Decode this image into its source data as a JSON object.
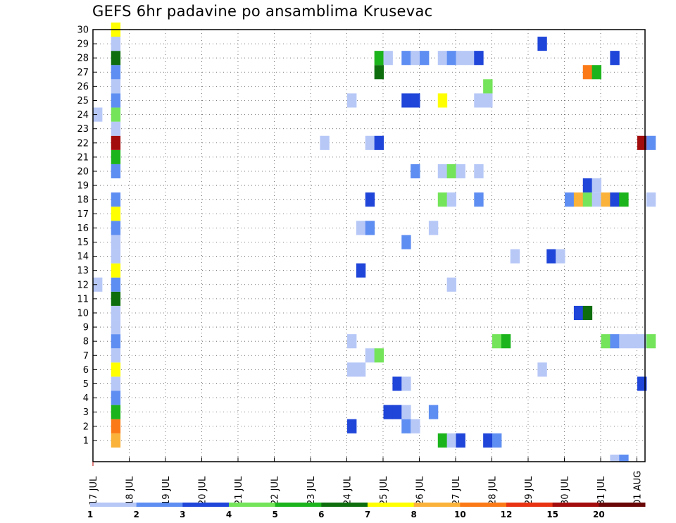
{
  "chart_data": {
    "type": "heatmap",
    "title": "GEFS 6hr padavine po ansamblima Krusevac",
    "xlabel": "",
    "ylabel": "",
    "x_tick_labels": [
      "17 JUL",
      "18 JUL",
      "19 JUL",
      "20 JUL",
      "21 JUL",
      "22 JUL",
      "23 JUL",
      "24 JUL",
      "25 JUL",
      "26 JUL",
      "27 JUL",
      "28 JUL",
      "29 JUL",
      "30 JUL",
      "31 JUL",
      "01 AUG"
    ],
    "x_range_days": [
      0,
      15.3
    ],
    "y_tick_labels": [
      "1",
      "2",
      "3",
      "4",
      "5",
      "6",
      "7",
      "8",
      "9",
      "10",
      "11",
      "12",
      "13",
      "14",
      "15",
      "16",
      "17",
      "18",
      "19",
      "20",
      "21",
      "22",
      "23",
      "24",
      "25",
      "26",
      "27",
      "28",
      "29",
      "30"
    ],
    "y_range": [
      0,
      30
    ],
    "grid": true,
    "grid_style": "dotted",
    "colorbar": {
      "position": "bottom",
      "labels": [
        "1",
        "2",
        "3",
        "4",
        "5",
        "6",
        "7",
        "8",
        "10",
        "12",
        "15",
        "20"
      ],
      "colors": [
        "#b7c8f7",
        "#5f8ef2",
        "#1f45d9",
        "#74e45a",
        "#1cb41c",
        "#0e6e0e",
        "#ffff00",
        "#fbb23a",
        "#fb7a17",
        "#e83211",
        "#a30c0c",
        "#6a0606"
      ]
    },
    "class_colors": {
      "1": "#b7c8f7",
      "2": "#5f8ef2",
      "3": "#1f45d9",
      "4": "#74e45a",
      "5": "#1cb41c",
      "6": "#0e6e0e",
      "7": "#ffff00",
      "8": "#fbb23a",
      "10": "#fb7a17",
      "12": "#e83211",
      "15": "#a30c0c",
      "20": "#6a0606"
    },
    "cells_day_member_class": [
      [
        0.63,
        1,
        "8"
      ],
      [
        0.63,
        2,
        "10"
      ],
      [
        0.63,
        3,
        "5"
      ],
      [
        0.63,
        4,
        "2"
      ],
      [
        0.63,
        5,
        "1"
      ],
      [
        0.63,
        6,
        "7"
      ],
      [
        0.63,
        7,
        "1"
      ],
      [
        0.63,
        8,
        "2"
      ],
      [
        0.63,
        9,
        "1"
      ],
      [
        0.63,
        10,
        "1"
      ],
      [
        0.63,
        11,
        "6"
      ],
      [
        0.63,
        12,
        "2"
      ],
      [
        0.63,
        13,
        "7"
      ],
      [
        0.63,
        14,
        "1"
      ],
      [
        0.63,
        15,
        "1"
      ],
      [
        0.63,
        16,
        "2"
      ],
      [
        0.63,
        17,
        "7"
      ],
      [
        0.63,
        18,
        "2"
      ],
      [
        0.63,
        20,
        "2"
      ],
      [
        0.63,
        21,
        "5"
      ],
      [
        0.63,
        22,
        "15"
      ],
      [
        0.63,
        23,
        "1"
      ],
      [
        0.63,
        24,
        "4"
      ],
      [
        0.63,
        25,
        "2"
      ],
      [
        0.63,
        26,
        "1"
      ],
      [
        0.63,
        27,
        "2"
      ],
      [
        0.63,
        28,
        "6"
      ],
      [
        0.63,
        29,
        "1"
      ],
      [
        0.63,
        30,
        "7"
      ],
      [
        0.13,
        12,
        "1"
      ],
      [
        0.13,
        24,
        "1"
      ],
      [
        6.39,
        22,
        "1"
      ],
      [
        7.14,
        2,
        "3"
      ],
      [
        7.14,
        6,
        "1"
      ],
      [
        7.14,
        8,
        "1"
      ],
      [
        7.14,
        25,
        "1"
      ],
      [
        7.39,
        6,
        "1"
      ],
      [
        7.39,
        13,
        "3"
      ],
      [
        7.39,
        16,
        "1"
      ],
      [
        7.64,
        7,
        "1"
      ],
      [
        7.64,
        16,
        "2"
      ],
      [
        7.64,
        18,
        "3"
      ],
      [
        7.64,
        22,
        "1"
      ],
      [
        7.89,
        7,
        "4"
      ],
      [
        7.89,
        22,
        "3"
      ],
      [
        7.89,
        27,
        "6"
      ],
      [
        7.89,
        28,
        "5"
      ],
      [
        8.14,
        3,
        "3"
      ],
      [
        8.14,
        28,
        "1"
      ],
      [
        8.39,
        3,
        "3"
      ],
      [
        8.39,
        5,
        "3"
      ],
      [
        8.64,
        2,
        "2"
      ],
      [
        8.64,
        3,
        "1"
      ],
      [
        8.64,
        5,
        "1"
      ],
      [
        8.64,
        15,
        "2"
      ],
      [
        8.64,
        25,
        "3"
      ],
      [
        8.64,
        28,
        "2"
      ],
      [
        8.89,
        2,
        "1"
      ],
      [
        8.89,
        20,
        "2"
      ],
      [
        8.89,
        25,
        "3"
      ],
      [
        8.89,
        28,
        "1"
      ],
      [
        9.14,
        28,
        "2"
      ],
      [
        9.39,
        3,
        "2"
      ],
      [
        9.39,
        16,
        "1"
      ],
      [
        9.64,
        1,
        "5"
      ],
      [
        9.64,
        18,
        "4"
      ],
      [
        9.64,
        20,
        "1"
      ],
      [
        9.64,
        25,
        "7"
      ],
      [
        9.64,
        28,
        "1"
      ],
      [
        9.89,
        1,
        "1"
      ],
      [
        9.89,
        12,
        "1"
      ],
      [
        9.89,
        18,
        "1"
      ],
      [
        9.89,
        20,
        "4"
      ],
      [
        9.89,
        28,
        "2"
      ],
      [
        10.14,
        1,
        "3"
      ],
      [
        10.14,
        20,
        "1"
      ],
      [
        10.14,
        28,
        "1"
      ],
      [
        10.39,
        28,
        "1"
      ],
      [
        10.64,
        18,
        "2"
      ],
      [
        10.64,
        20,
        "1"
      ],
      [
        10.64,
        25,
        "1"
      ],
      [
        10.64,
        28,
        "3"
      ],
      [
        10.89,
        1,
        "3"
      ],
      [
        10.89,
        25,
        "1"
      ],
      [
        10.89,
        26,
        "4"
      ],
      [
        11.14,
        1,
        "2"
      ],
      [
        11.14,
        8,
        "4"
      ],
      [
        11.39,
        8,
        "5"
      ],
      [
        11.64,
        14,
        "1"
      ],
      [
        12.39,
        6,
        "1"
      ],
      [
        12.39,
        29,
        "3"
      ],
      [
        12.64,
        14,
        "3"
      ],
      [
        12.89,
        14,
        "1"
      ],
      [
        13.14,
        18,
        "2"
      ],
      [
        13.39,
        10,
        "3"
      ],
      [
        13.39,
        18,
        "8"
      ],
      [
        13.64,
        10,
        "6"
      ],
      [
        13.64,
        18,
        "4"
      ],
      [
        13.64,
        19,
        "3"
      ],
      [
        13.64,
        27,
        "10"
      ],
      [
        13.89,
        18,
        "1"
      ],
      [
        13.89,
        19,
        "1"
      ],
      [
        13.89,
        27,
        "5"
      ],
      [
        14.14,
        8,
        "4"
      ],
      [
        14.14,
        18,
        "8"
      ],
      [
        14.39,
        8,
        "2"
      ],
      [
        14.39,
        18,
        "3"
      ],
      [
        14.39,
        28,
        "3"
      ],
      [
        14.39,
        0,
        "1"
      ],
      [
        14.64,
        8,
        "1"
      ],
      [
        14.64,
        18,
        "5"
      ],
      [
        14.64,
        0,
        "2"
      ],
      [
        14.89,
        8,
        "1"
      ],
      [
        15.14,
        5,
        "3"
      ],
      [
        15.14,
        8,
        "1"
      ],
      [
        15.14,
        22,
        "15"
      ],
      [
        15.39,
        8,
        "4"
      ],
      [
        15.39,
        18,
        "1"
      ],
      [
        15.39,
        22,
        "2"
      ]
    ]
  }
}
